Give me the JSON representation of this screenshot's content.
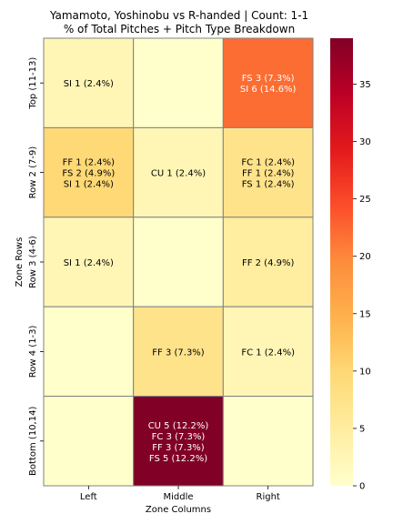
{
  "chart_data": {
    "type": "heatmap",
    "title": "Yamamoto, Yoshinobu vs R-handed | Count: 1-1",
    "subtitle": "% of Total Pitches + Pitch Type Breakdown",
    "xlabel": "Zone Columns",
    "ylabel": "Zone Rows",
    "columns": [
      "Left",
      "Middle",
      "Right"
    ],
    "rows": [
      "Top (11-13)",
      "Row 2 (7-9)",
      "Row 3 (4-6)",
      "Row 4 (1-3)",
      "Bottom (10,14)"
    ],
    "values": [
      [
        2.4,
        0.0,
        22.0
      ],
      [
        9.8,
        2.4,
        7.3
      ],
      [
        2.4,
        0.0,
        4.9
      ],
      [
        0.0,
        7.3,
        2.4
      ],
      [
        0.0,
        39.0,
        0.0
      ]
    ],
    "cell_labels": [
      [
        [
          "SI 1 (2.4%)"
        ],
        [],
        [
          "FS 3 (7.3%)",
          "SI 6 (14.6%)"
        ]
      ],
      [
        [
          "FF 1 (2.4%)",
          "FS 2 (4.9%)",
          "SI 1 (2.4%)"
        ],
        [
          "CU 1 (2.4%)"
        ],
        [
          "FC 1 (2.4%)",
          "FF 1 (2.4%)",
          "FS 1 (2.4%)"
        ]
      ],
      [
        [
          "SI 1 (2.4%)"
        ],
        [],
        [
          "FF 2 (4.9%)"
        ]
      ],
      [
        [],
        [
          "FF 3 (7.3%)"
        ],
        [
          "FC 1 (2.4%)"
        ]
      ],
      [
        [],
        [
          "CU 5 (12.2%)",
          "FC 3 (7.3%)",
          "FF 3 (7.3%)",
          "FS 5 (12.2%)"
        ],
        []
      ]
    ],
    "colorbar": {
      "colormap": "YlOrRd",
      "range": [
        0,
        39
      ],
      "ticks": [
        0,
        5,
        10,
        15,
        20,
        25,
        30,
        35
      ]
    }
  }
}
